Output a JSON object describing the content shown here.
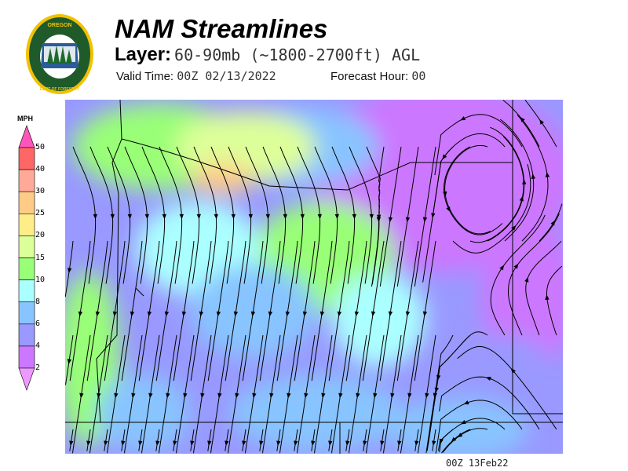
{
  "header": {
    "title": "NAM Streamlines",
    "layer_label": "Layer:",
    "layer_value": "60-90mb (~1800-2700ft) AGL",
    "valid_label": "Valid Time:",
    "valid_value": "00Z 02/13/2022",
    "forecast_label": "Forecast Hour:",
    "forecast_value": "00"
  },
  "logo": {
    "text_top": "OREGON",
    "text_bottom": "DEPARTMENT OF FORESTRY",
    "colors": {
      "ring": "#f2c100",
      "field": "#1f5a2a"
    }
  },
  "colorbar": {
    "unit": "MPH",
    "ticks": [
      "50",
      "40",
      "30",
      "25",
      "20",
      "15",
      "10",
      "8",
      "6",
      "4",
      "2"
    ],
    "colors": {
      "over": "#ff55bb",
      "bands": [
        "#ff6666",
        "#ffaa99",
        "#ffcc88",
        "#ffee88",
        "#ddff99",
        "#99ff77",
        "#aaffff",
        "#88c4ff",
        "#9999ff",
        "#cc77ff"
      ],
      "under": "#ee99ff"
    }
  },
  "map": {
    "field": "wind-speed-streamlines",
    "boundary_color": "#000000"
  },
  "footer": {
    "stamp": "00Z 13Feb22"
  }
}
